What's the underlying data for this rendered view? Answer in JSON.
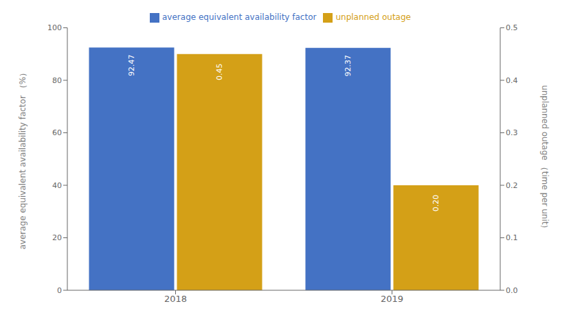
{
  "chart_data": {
    "type": "bar",
    "categories": [
      "2018",
      "2019"
    ],
    "series": [
      {
        "name": "average equivalent availability factor",
        "color": "#4472C4",
        "values": [
          92.47,
          92.37
        ]
      },
      {
        "name": "unplanned outage",
        "color": "#D4A017",
        "values": [
          0.45,
          0.2
        ],
        "value_labels": [
          "0.45",
          "0.20"
        ],
        "axis": "y2"
      }
    ],
    "ylabel": "average equivalent availability factor （%）",
    "y2label": "unplanned outage （time per unit）",
    "ylim": [
      0,
      100
    ],
    "yticks": [
      0,
      20,
      40,
      60,
      80,
      100
    ],
    "y2lim": [
      0,
      0.5
    ],
    "y2ticks": [
      {
        "value": 0,
        "label": "0.0"
      },
      0.1,
      0.2,
      0.3,
      0.4,
      0.5
    ],
    "data_labels": true,
    "legend": "top",
    "grid": false
  }
}
